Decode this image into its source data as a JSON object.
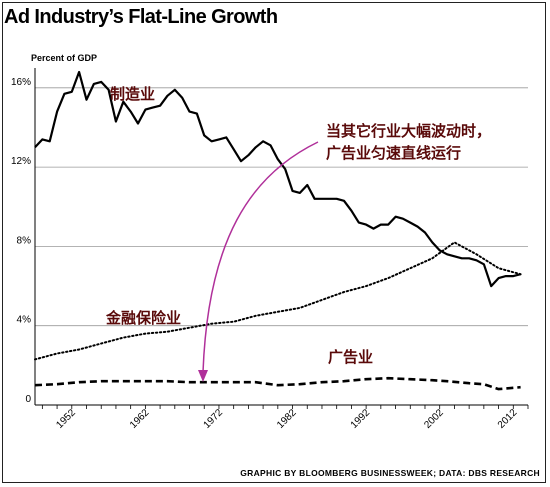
{
  "title": "Ad Industry’s Flat-Line Growth",
  "source": "GRAPHIC BY BLOOMBERG BUSINESSWEEK; DATA: DBS RESEARCH",
  "chart_data": {
    "type": "line",
    "ylabel": "Percent of GDP",
    "ylim": [
      0,
      17
    ],
    "xlim": [
      1947,
      2014
    ],
    "yticks": [
      {
        "value": 0,
        "label": "0"
      },
      {
        "value": 4,
        "label": "4%"
      },
      {
        "value": 8,
        "label": "8%"
      },
      {
        "value": 12,
        "label": "12%"
      },
      {
        "value": 16,
        "label": "16%"
      }
    ],
    "xticks": [
      1952,
      1962,
      1972,
      1982,
      1992,
      2002,
      2012
    ],
    "grid": "horizontal",
    "series": [
      {
        "name": "制造业",
        "style": "solid",
        "color": "#000000",
        "x": [
          1947,
          1948,
          1949,
          1950,
          1951,
          1952,
          1953,
          1954,
          1955,
          1956,
          1957,
          1958,
          1959,
          1960,
          1961,
          1962,
          1963,
          1964,
          1965,
          1966,
          1967,
          1968,
          1969,
          1970,
          1971,
          1972,
          1973,
          1974,
          1975,
          1976,
          1977,
          1978,
          1979,
          1980,
          1981,
          1982,
          1983,
          1984,
          1985,
          1986,
          1987,
          1988,
          1989,
          1990,
          1991,
          1992,
          1993,
          1994,
          1995,
          1996,
          1997,
          1998,
          1999,
          2000,
          2001,
          2002,
          2003,
          2004,
          2005,
          2006,
          2007,
          2008,
          2009,
          2010,
          2011,
          2012,
          2013
        ],
        "y": [
          13.0,
          13.4,
          13.3,
          14.8,
          15.7,
          15.8,
          16.8,
          15.4,
          16.2,
          16.3,
          15.9,
          14.3,
          15.3,
          14.8,
          14.2,
          14.9,
          15.0,
          15.1,
          15.6,
          15.9,
          15.5,
          14.8,
          14.7,
          13.6,
          13.3,
          13.4,
          13.5,
          12.9,
          12.3,
          12.6,
          13.0,
          13.3,
          13.1,
          12.4,
          11.9,
          10.8,
          10.7,
          11.1,
          10.4,
          10.4,
          10.4,
          10.4,
          10.3,
          9.8,
          9.2,
          9.1,
          8.9,
          9.1,
          9.1,
          9.5,
          9.4,
          9.2,
          9.0,
          8.7,
          8.2,
          7.8,
          7.6,
          7.5,
          7.4,
          7.4,
          7.3,
          7.1,
          6.0,
          6.4,
          6.5,
          6.5,
          6.6
        ]
      },
      {
        "name": "金融保险业",
        "style": "dotted",
        "color": "#000000",
        "x": [
          1947,
          1950,
          1953,
          1956,
          1959,
          1962,
          1965,
          1968,
          1971,
          1974,
          1977,
          1980,
          1983,
          1986,
          1989,
          1992,
          1995,
          1998,
          2001,
          2004,
          2007,
          2010,
          2013
        ],
        "y": [
          2.3,
          2.6,
          2.8,
          3.1,
          3.4,
          3.6,
          3.7,
          3.9,
          4.1,
          4.2,
          4.5,
          4.7,
          4.9,
          5.3,
          5.7,
          6.0,
          6.4,
          6.9,
          7.4,
          8.2,
          7.6,
          6.9,
          6.6
        ]
      },
      {
        "name": "广告业",
        "style": "dashed",
        "color": "#000000",
        "x": [
          1947,
          1950,
          1953,
          1956,
          1959,
          1962,
          1965,
          1968,
          1971,
          1974,
          1977,
          1980,
          1983,
          1986,
          1989,
          1992,
          1995,
          1998,
          2001,
          2003,
          2006,
          2008,
          2010,
          2013
        ],
        "y": [
          1.0,
          1.05,
          1.15,
          1.2,
          1.2,
          1.2,
          1.2,
          1.15,
          1.15,
          1.15,
          1.15,
          1.0,
          1.05,
          1.15,
          1.2,
          1.3,
          1.35,
          1.3,
          1.25,
          1.2,
          1.1,
          1.05,
          0.8,
          0.9
        ]
      }
    ],
    "annotations": {
      "manufacturing": "制造业",
      "finance": "金融保险业",
      "advertising": "广告业",
      "note_line1": "当其它行业大幅波动时，",
      "note_line2": "广告业匀速直线运行"
    },
    "arrow_color": "#b0309a"
  }
}
